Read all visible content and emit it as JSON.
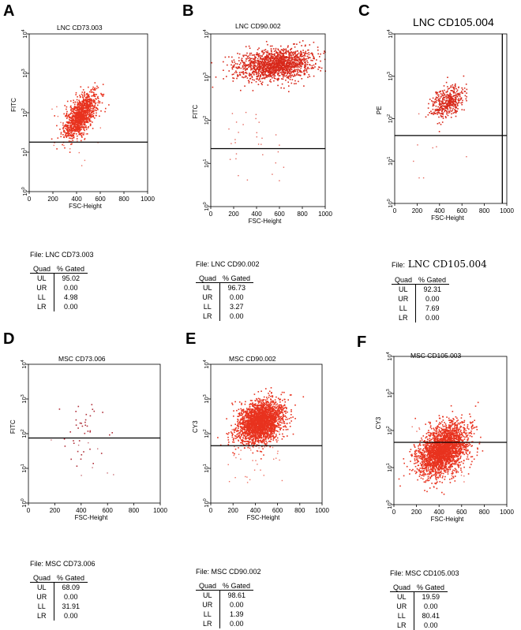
{
  "chart_data": [
    {
      "panel": "A",
      "type": "scatter",
      "title": "LNC CD73.003",
      "xlabel": "FSC-Height",
      "ylabel": "FITC",
      "xticks": [
        "0",
        "200",
        "400",
        "600",
        "800",
        "1000"
      ],
      "yticks": [
        "10^0",
        "10^1",
        "10^2",
        "10^3",
        "10^4"
      ],
      "xlim": [
        0,
        1000
      ],
      "ylim_log10": [
        0,
        4
      ],
      "gate_y": 18,
      "gate_x": null,
      "cloud": {
        "cx": 430,
        "cy_log": 1.95,
        "sx": 70,
        "sy": 0.3,
        "rho": 0.65,
        "n": 1100
      },
      "color": "#e8321e",
      "file": "File: LNC CD73.003",
      "header": [
        "Quad",
        "% Gated"
      ],
      "rows": [
        [
          "UL",
          "95.02"
        ],
        [
          "UR",
          "0.00"
        ],
        [
          "LL",
          "4.98"
        ],
        [
          "LR",
          "0.00"
        ]
      ]
    },
    {
      "panel": "B",
      "type": "scatter",
      "title": "LNC CD90.002",
      "xlabel": "FSC-Height",
      "ylabel": "FITC",
      "xticks": [
        "0",
        "200",
        "400",
        "600",
        "800",
        "1000"
      ],
      "yticks": [
        "10^0",
        "10^1",
        "10^2",
        "10^3",
        "10^4"
      ],
      "xlim": [
        0,
        1000
      ],
      "ylim_log10": [
        0,
        4
      ],
      "gate_y": 22,
      "gate_x": null,
      "cloud": {
        "cx": 560,
        "cy_log": 3.3,
        "sx": 170,
        "sy": 0.18,
        "rho": 0.2,
        "n": 1500
      },
      "color": "#d8281a",
      "file": "File: LNC CD90.002",
      "header": [
        "Quad",
        "% Gated"
      ],
      "rows": [
        [
          "UL",
          "96.73"
        ],
        [
          "UR",
          "0.00"
        ],
        [
          "LL",
          "3.27"
        ],
        [
          "LR",
          "0.00"
        ]
      ]
    },
    {
      "panel": "C",
      "type": "scatter",
      "title": "LNC CD105.004",
      "xlabel": "FSC-Height",
      "ylabel": "PE",
      "xticks": [
        "0",
        "200",
        "400",
        "600",
        "800",
        "1000"
      ],
      "yticks": [
        "10^0",
        "10^1",
        "10^2",
        "10^3",
        "10^4"
      ],
      "xlim": [
        0,
        1000
      ],
      "ylim_log10": [
        0,
        4
      ],
      "gate_y": 40,
      "gate_x": 960,
      "cloud": {
        "cx": 470,
        "cy_log": 2.4,
        "sx": 75,
        "sy": 0.2,
        "rho": 0.4,
        "n": 420
      },
      "color": "#d8281a",
      "file": "File:",
      "file_id": "LNC CD105.004",
      "header": [
        "Quad",
        "% Gated"
      ],
      "rows": [
        [
          "UL",
          "92.31"
        ],
        [
          "UR",
          "0.00"
        ],
        [
          "LL",
          "7.69"
        ],
        [
          "LR",
          "0.00"
        ]
      ]
    },
    {
      "panel": "D",
      "type": "scatter",
      "title": "MSC CD73.006",
      "xlabel": "FSC-Height",
      "ylabel": "FITC",
      "xticks": [
        "0",
        "200",
        "400",
        "600",
        "800",
        "1000"
      ],
      "yticks": [
        "10^0",
        "10^1",
        "10^2",
        "10^3",
        "10^4"
      ],
      "xlim": [
        0,
        1000
      ],
      "ylim_log10": [
        0,
        4
      ],
      "gate_y": 75,
      "gate_x": null,
      "cloud": {
        "cx": 380,
        "cy_log": 2.0,
        "sx": 90,
        "sy": 0.5,
        "rho": 0.0,
        "n": 40
      },
      "color": "#b0303a",
      "file": "File: MSC CD73.006",
      "header": [
        "Quad",
        "% Gated"
      ],
      "rows": [
        [
          "UL",
          "68.09"
        ],
        [
          "UR",
          "0.00"
        ],
        [
          "LL",
          "31.91"
        ],
        [
          "LR",
          "0.00"
        ]
      ]
    },
    {
      "panel": "E",
      "type": "scatter",
      "title": "MSC CD90.002",
      "xlabel": "FSC-Height",
      "ylabel": "CY3",
      "xticks": [
        "0",
        "200",
        "400",
        "600",
        "800",
        "1000"
      ],
      "yticks": [
        "10^0",
        "10^1",
        "10^2",
        "10^3",
        "10^4"
      ],
      "xlim": [
        0,
        1000
      ],
      "ylim_log10": [
        0,
        4
      ],
      "gate_y": 45,
      "gate_x": null,
      "cloud": {
        "cx": 440,
        "cy_log": 2.35,
        "sx": 100,
        "sy": 0.3,
        "rho": 0.3,
        "n": 2400
      },
      "color": "#e8321e",
      "file": "File: MSC CD90.002",
      "header": [
        "Quad",
        "% Gated"
      ],
      "rows": [
        [
          "UL",
          "98.61"
        ],
        [
          "UR",
          "0.00"
        ],
        [
          "LL",
          "1.39"
        ],
        [
          "LR",
          "0.00"
        ]
      ]
    },
    {
      "panel": "F",
      "type": "scatter",
      "title": "MSC CD105.003",
      "xlabel": "FSC-Height",
      "ylabel": "CY3",
      "xticks": [
        "0",
        "200",
        "400",
        "600",
        "800",
        "1000"
      ],
      "yticks": [
        "10^0",
        "10^1",
        "10^2",
        "10^3",
        "10^4"
      ],
      "xlim": [
        0,
        1000
      ],
      "ylim_log10": [
        0,
        4
      ],
      "gate_y": 48,
      "gate_x": null,
      "cloud": {
        "cx": 430,
        "cy_log": 1.5,
        "sx": 110,
        "sy": 0.35,
        "rho": 0.4,
        "n": 2400
      },
      "color": "#e8321e",
      "file": "File: MSC CD105.003",
      "header": [
        "Quad",
        "% Gated"
      ],
      "rows": [
        [
          "UL",
          "19.59"
        ],
        [
          "UR",
          "0.00"
        ],
        [
          "LL",
          "80.41"
        ],
        [
          "LR",
          "0.00"
        ]
      ]
    }
  ]
}
